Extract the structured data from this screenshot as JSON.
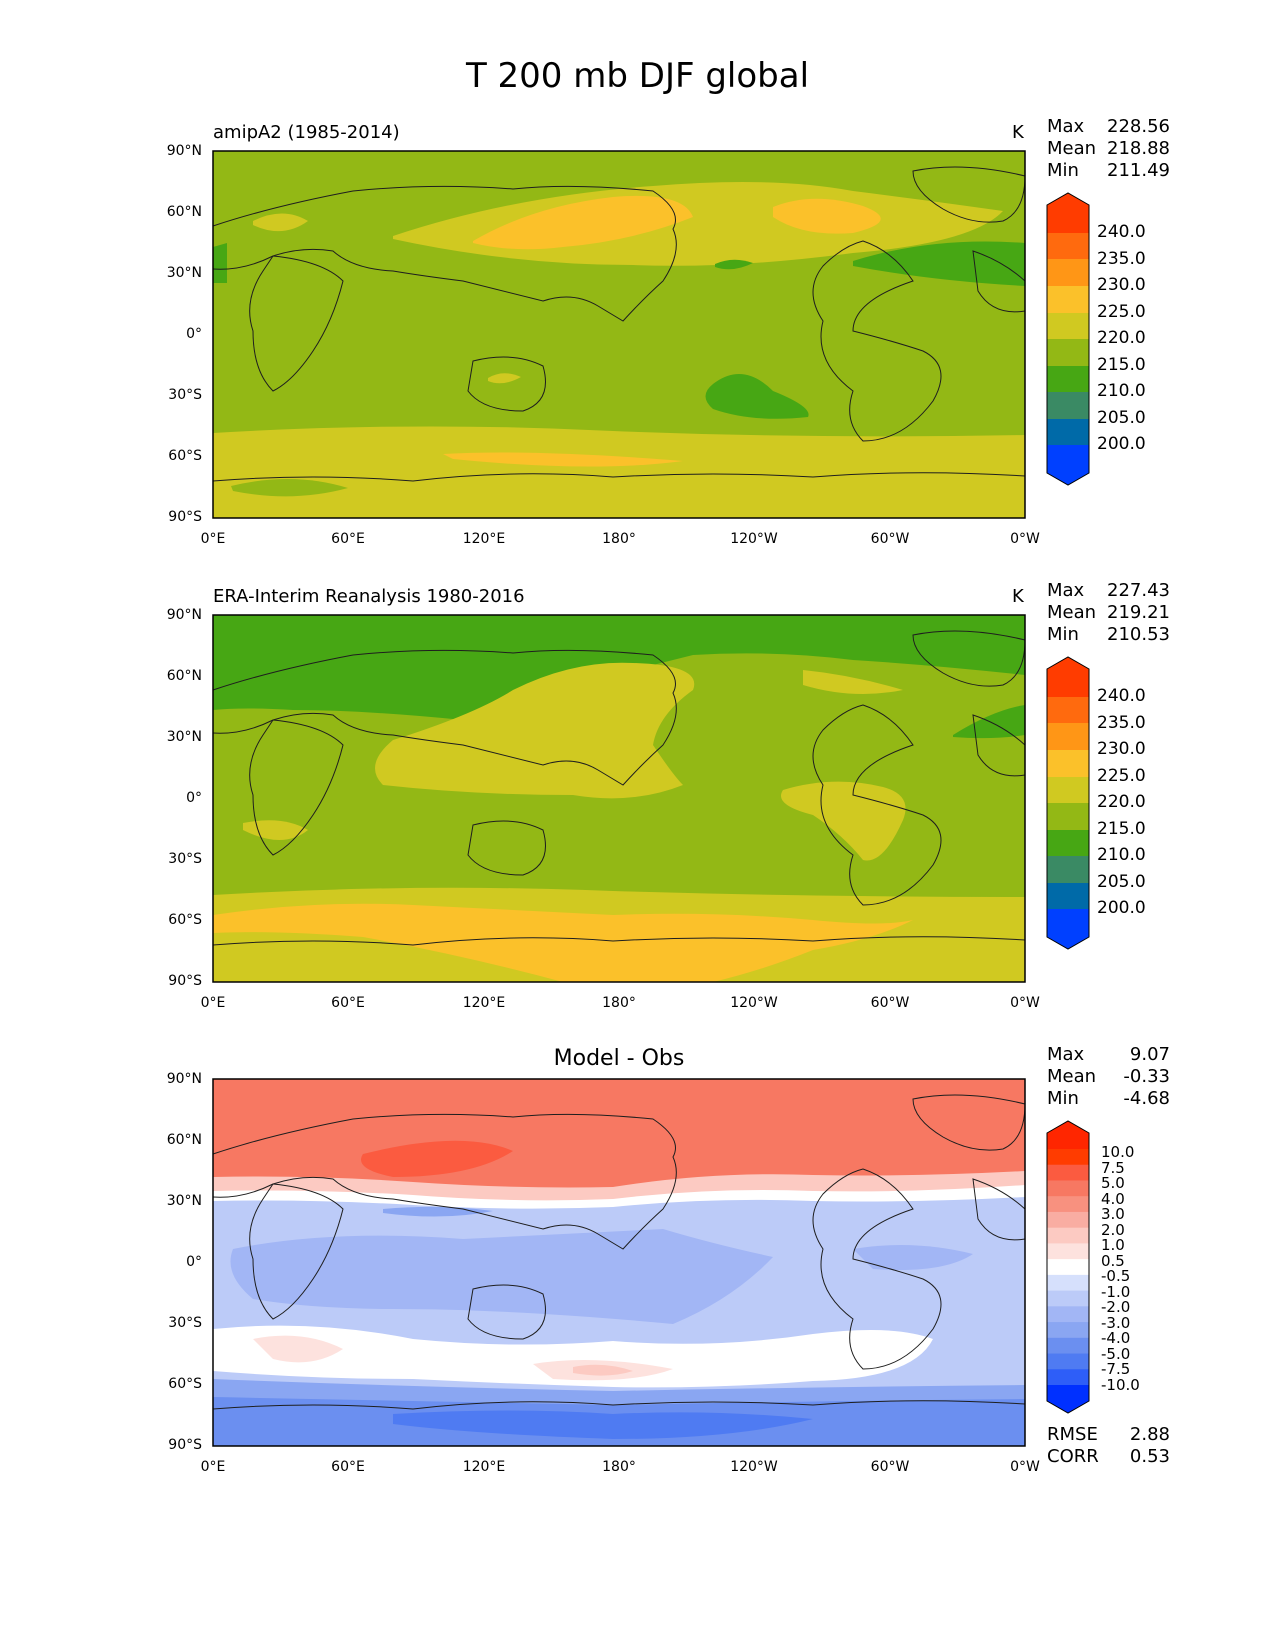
{
  "title": "T 200 mb DJF global",
  "colors": {
    "c200": "#0040ff",
    "c205": "#006aa8",
    "c210": "#3a8a64",
    "c215": "#47a714",
    "c220": "#93b815",
    "c225": "#d0c921",
    "c230": "#fbc12a",
    "c235": "#ff9616",
    "c240": "#ff6a0e",
    "cmax": "#ff3c00",
    "diff": [
      "#0030ff",
      "#2e5ef8",
      "#4f7bf2",
      "#6b8ff0",
      "#8aa6f2",
      "#a2b6f5",
      "#bccbf8",
      "#d6e0fc",
      "#ffffff",
      "#fde2de",
      "#fccac2",
      "#f9ada2",
      "#f8917f",
      "#f77862",
      "#fb5b40",
      "#ff3c00",
      "#ff2600"
    ]
  },
  "panels": [
    {
      "id": "model",
      "title": "amipA2 (1985-2014)",
      "units": "K",
      "stats": [
        {
          "label": "Max",
          "value": "228.56"
        },
        {
          "label": "Mean",
          "value": "218.88"
        },
        {
          "label": "Min",
          "value": "211.49"
        }
      ],
      "colorbar_levels": [
        "240.0",
        "235.0",
        "230.0",
        "225.0",
        "220.0",
        "215.0",
        "210.0",
        "205.0",
        "200.0"
      ]
    },
    {
      "id": "obs",
      "title": "ERA-Interim Reanalysis 1980-2016",
      "units": "K",
      "stats": [
        {
          "label": "Max",
          "value": "227.43"
        },
        {
          "label": "Mean",
          "value": "219.21"
        },
        {
          "label": "Min",
          "value": "210.53"
        }
      ],
      "colorbar_levels": [
        "240.0",
        "235.0",
        "230.0",
        "225.0",
        "220.0",
        "215.0",
        "210.0",
        "205.0",
        "200.0"
      ]
    },
    {
      "id": "diff",
      "title": "Model - Obs",
      "units": "",
      "stats": [
        {
          "label": "Max",
          "value": "9.07"
        },
        {
          "label": "Mean",
          "value": "-0.33"
        },
        {
          "label": "Min",
          "value": "-4.68"
        }
      ],
      "colorbar_levels": [
        "10.0",
        "7.5",
        "5.0",
        "4.0",
        "3.0",
        "2.0",
        "1.0",
        "0.5",
        "-0.5",
        "-1.0",
        "-2.0",
        "-3.0",
        "-4.0",
        "-5.0",
        "-7.5",
        "-10.0"
      ],
      "metrics": [
        {
          "label": "RMSE",
          "value": "2.88"
        },
        {
          "label": "CORR",
          "value": "0.53"
        }
      ]
    }
  ],
  "axes": {
    "yticks": [
      "90°N",
      "60°N",
      "30°N",
      "0°",
      "30°S",
      "60°S",
      "90°S"
    ],
    "xticks": [
      "0°E",
      "60°E",
      "120°E",
      "180°",
      "120°W",
      "60°W",
      "0°W"
    ]
  }
}
